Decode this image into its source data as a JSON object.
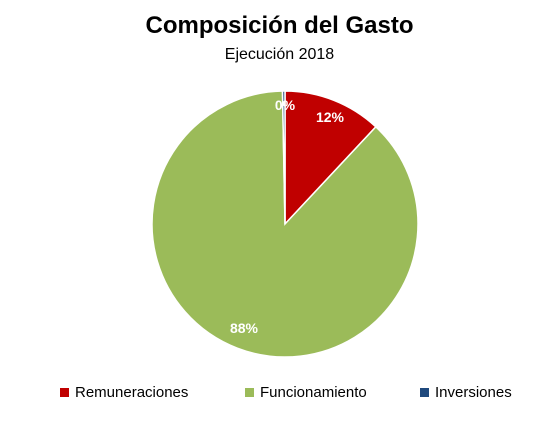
{
  "title": "Composición del Gasto",
  "subtitle": "Ejecución 2018",
  "chart_data": {
    "type": "pie",
    "title": "Composición del Gasto",
    "subtitle": "Ejecución 2018",
    "slices": [
      {
        "label": "Remuneraciones",
        "value": 12,
        "display": "12%",
        "color": "#C00000"
      },
      {
        "label": "Funcionamiento",
        "value": 88,
        "display": "88%",
        "color": "#9BBB59"
      },
      {
        "label": "Inversiones",
        "value": 0.3,
        "display": "0%",
        "color": "#1F497D"
      }
    ],
    "start_angle_deg": 0,
    "direction": "clockwise",
    "legend_position": "bottom"
  }
}
